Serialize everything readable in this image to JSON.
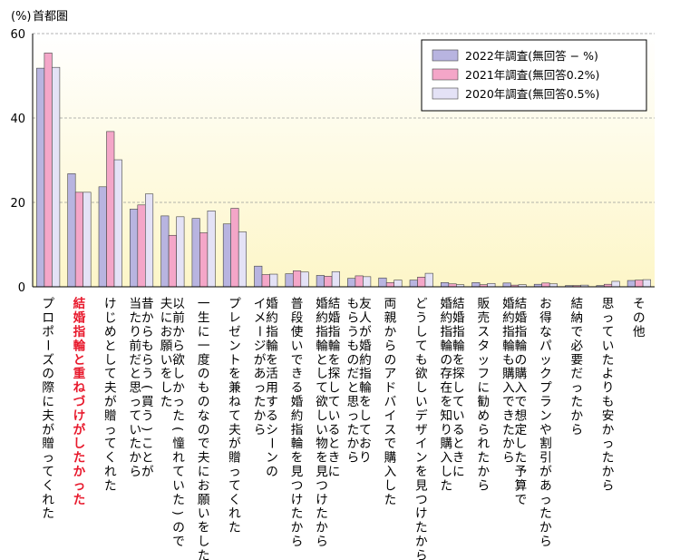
{
  "chart_data": {
    "type": "bar",
    "title": "首都圏",
    "ylabel": "(%)",
    "ylim": [
      0,
      60
    ],
    "yticks": [
      0,
      20,
      40,
      60
    ],
    "grid": true,
    "legend_position": "top-right",
    "highlight_index": 1,
    "highlight_color": "#e8192c",
    "categories": [
      "プロポーズの際に夫が贈ってくれた",
      "結婚指輪と重ねづけがしたかった",
      "けじめとして夫が贈ってくれた",
      "昔からもらう(買う)ことが当たり前だと思っていたから",
      "以前から欲しかった(憧れていた)ので夫にお願いをした",
      "一生に一度のものなので夫にお願いをした",
      "プレゼントを兼ねて夫が贈ってくれた",
      "婚約指輪を活用するシーンのイメージがあったから",
      "普段使いできる婚約指輪を見つけたから",
      "結婚指輪を探しているときに婚約指輪として欲しい物を見つけたから",
      "友人が婚約指輪をしておりもらうものだと思ったから",
      "両親からのアドバイスで購入した",
      "どうしても欲しいデザインを見つけたから",
      "結婚指輪を探しているときに婚約指輪の存在を知り購入した",
      "販売スタッフに勧められたから",
      "結婚指輪の購入で想定した予算で婚約指輪も購入できたから",
      "お得なパックプランや割引があったから",
      "結納で必要だったから",
      "思っていたよりも安かったから",
      "その他"
    ],
    "label_lines": [
      [
        "プロポーズの際に夫が贈ってくれた"
      ],
      [
        "結婚指輪と重ねづけがしたかった"
      ],
      [
        "けじめとして夫が贈ってくれた"
      ],
      [
        "昔からもらう(買う)ことが",
        "当たり前だと思っていたから"
      ],
      [
        "以前から欲しかった(憧れていた)ので",
        "夫にお願いをした"
      ],
      [
        "一生に一度のものなので夫にお願いをした"
      ],
      [
        "プレゼントを兼ねて夫が贈ってくれた"
      ],
      [
        "婚約指輪を活用するシーンの",
        "イメージがあったから"
      ],
      [
        "普段使いできる婚約指輪を見つけたから"
      ],
      [
        "結婚指輪を探しているときに",
        "婚約指輪として欲しい物を見つけたから"
      ],
      [
        "友人が婚約指輪をしており",
        "もらうものだと思ったから"
      ],
      [
        "両親からのアドバイスで購入した"
      ],
      [
        "どうしても欲しいデザインを見つけたから"
      ],
      [
        "結婚指輪を探しているときに",
        "婚約指輪の存在を知り購入した"
      ],
      [
        "販売スタッフに勧められたから"
      ],
      [
        "結婚指輪の購入で想定した予算で",
        "婚約指輪も購入できたから"
      ],
      [
        "お得なパックプランや割引があったから"
      ],
      [
        "結納で必要だったから"
      ],
      [
        "思っていたよりも安かったから"
      ],
      [
        "その他"
      ]
    ],
    "series": [
      {
        "name": "2022年調査(無回答 − %)",
        "color": "#b8b4e0",
        "values": [
          51.8,
          26.8,
          23.7,
          18.4,
          16.8,
          16.2,
          14.9,
          4.9,
          3.1,
          2.7,
          2.0,
          2.1,
          1.6,
          1.0,
          1.0,
          0.9,
          0.6,
          0.3,
          0.3,
          1.5
        ]
      },
      {
        "name": "2021年調査(無回答0.2%)",
        "color": "#f4a6c8",
        "values": [
          55.4,
          22.4,
          36.8,
          19.4,
          12.2,
          12.8,
          18.6,
          2.9,
          3.8,
          2.5,
          2.6,
          1.0,
          2.3,
          0.7,
          0.5,
          0.4,
          0.9,
          0.3,
          0.6,
          1.6
        ]
      },
      {
        "name": "2020年調査(無回答0.5%)",
        "color": "#e4e2f6",
        "values": [
          52.0,
          22.4,
          30.1,
          22.0,
          16.6,
          18.0,
          13.0,
          3.0,
          3.5,
          3.6,
          2.4,
          1.6,
          3.2,
          0.5,
          0.8,
          0.5,
          0.7,
          0.4,
          1.3,
          1.7
        ]
      }
    ]
  }
}
